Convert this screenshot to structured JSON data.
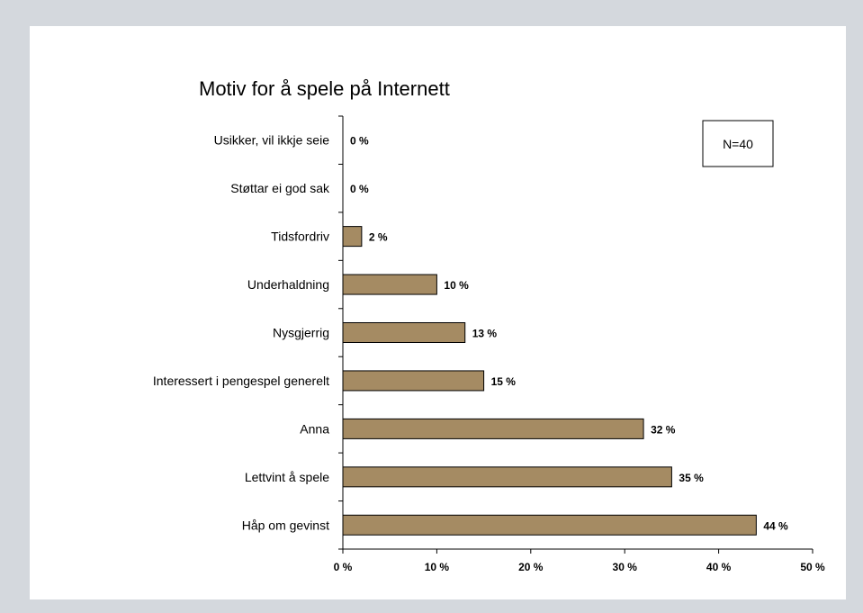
{
  "chart_data": {
    "type": "bar",
    "orientation": "horizontal",
    "title": "Motiv for å spele på Internett",
    "categories": [
      "Usikker, vil ikkje seie",
      "Støttar ei god sak",
      "Tidsfordriv",
      "Underhaldning",
      "Nysgjerrig",
      "Interessert i pengespel generelt",
      "Anna",
      "Lettvint å spele",
      "Håp om gevinst"
    ],
    "values": [
      0,
      0,
      2,
      10,
      13,
      15,
      32,
      35,
      44
    ],
    "value_labels": [
      "0 %",
      "0 %",
      "2 %",
      "10 %",
      "13 %",
      "15 %",
      "32 %",
      "35 %",
      "44 %"
    ],
    "xlim": [
      0,
      50
    ],
    "xticks": [
      0,
      10,
      20,
      30,
      40,
      50
    ],
    "xtick_labels": [
      "0 %",
      "10 %",
      "20 %",
      "30 %",
      "40 %",
      "50 %"
    ],
    "annotation": "N=40",
    "grid": false,
    "colors": {
      "bar": "#a58b63",
      "bar_stroke": "#000000",
      "background": "#d4d8dd",
      "panel": "#ffffff"
    }
  }
}
